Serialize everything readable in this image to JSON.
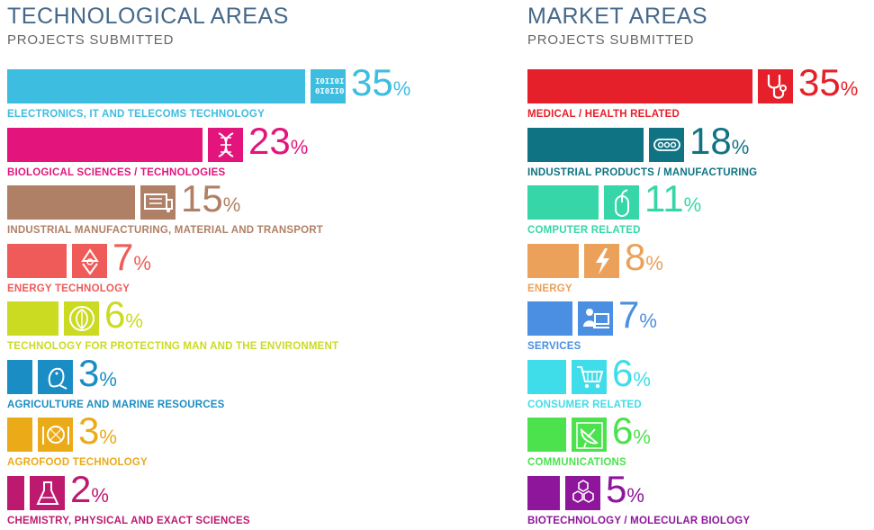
{
  "left": {
    "title": "TECHNOLOGICAL AREAS",
    "subtitle": "PROJECTS SUBMITTED"
  },
  "right": {
    "title": "MARKET AREAS",
    "subtitle": "PROJECTS SUBMITTED"
  },
  "percent_symbol": "%",
  "chart_data": [
    {
      "type": "bar",
      "title": "TECHNOLOGICAL AREAS",
      "subtitle": "PROJECTS SUBMITTED",
      "unit": "%",
      "categories": [
        "ELECTRONICS, IT AND TELECOMS TECHNOLOGY",
        "BIOLOGICAL SCIENCES / TECHNOLOGIES",
        "INDUSTRIAL MANUFACTURING, MATERIAL AND TRANSPORT",
        "ENERGY TECHNOLOGY",
        "TECHNOLOGY FOR PROTECTING MAN AND THE ENVIRONMENT",
        "AGRICULTURE AND MARINE RESOURCES",
        "AGROFOOD TECHNOLOGY",
        "CHEMISTRY, PHYSICAL AND EXACT SCIENCES"
      ],
      "values": [
        35,
        23,
        15,
        7,
        6,
        3,
        3,
        2
      ],
      "colors": [
        "#3dbde0",
        "#e3157c",
        "#b08066",
        "#ef5b58",
        "#cadb22",
        "#1a8ec4",
        "#ebaa18",
        "#bd1a6f"
      ],
      "icons": [
        "binary-icon",
        "dna-icon",
        "truck-icon",
        "recycle-icon",
        "leaf-icon",
        "fish-icon",
        "plate-icon",
        "flask-icon"
      ]
    },
    {
      "type": "bar",
      "title": "MARKET AREAS",
      "subtitle": "PROJECTS SUBMITTED",
      "unit": "%",
      "categories": [
        "MEDICAL / HEALTH RELATED",
        "INDUSTRIAL PRODUCTS / MANUFACTURING",
        "COMPUTER RELATED",
        "ENERGY",
        "SERVICES",
        "CONSUMER RELATED",
        "COMMUNICATIONS",
        "BIOTECHNOLOGY / MOLECULAR BIOLOGY"
      ],
      "values": [
        35,
        18,
        11,
        8,
        7,
        6,
        6,
        5
      ],
      "colors": [
        "#e6202a",
        "#0f7384",
        "#36d6a8",
        "#eba15a",
        "#4b8fe2",
        "#3fdde9",
        "#4ce24e",
        "#8e169a"
      ],
      "icons": [
        "stethoscope-icon",
        "conveyor-icon",
        "mouse-icon",
        "lightning-icon",
        "person-computer-icon",
        "cart-icon",
        "satellite-dish-icon",
        "molecule-icon"
      ]
    }
  ]
}
